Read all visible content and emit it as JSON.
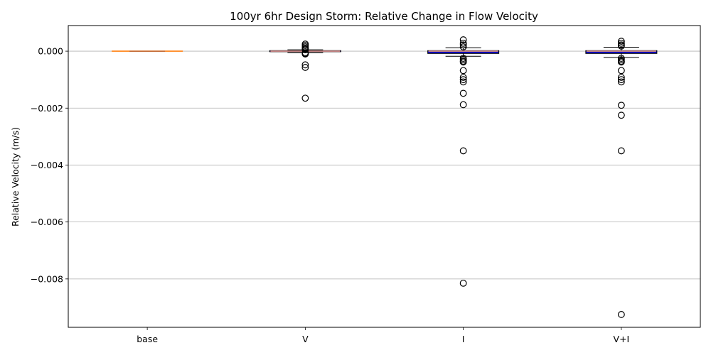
{
  "chart_data": {
    "type": "box",
    "title": "100yr 6hr Design Storm: Relative Change in Flow Velocity",
    "xlabel": "",
    "ylabel": "Relative Velocity (m/s)",
    "ylim": [
      -0.0097,
      0.0009
    ],
    "yticks": [
      0.0,
      -0.002,
      -0.004,
      -0.006,
      -0.008
    ],
    "ytick_labels": [
      "0.000",
      "−0.002",
      "−0.004",
      "−0.006",
      "−0.008"
    ],
    "grid": "y",
    "categories": [
      "base",
      "V",
      "I",
      "V+I"
    ],
    "boxes": [
      {
        "q1": 0.0,
        "median": 0.0,
        "q3": 0.0,
        "whisker_low": 0.0,
        "whisker_high": 0.0,
        "outliers": []
      },
      {
        "q1": -2e-05,
        "median": 0.0,
        "q3": 2e-05,
        "whisker_low": -5e-05,
        "whisker_high": 5e-05,
        "outliers": [
          0.00025,
          0.0002,
          0.00015,
          0.0001,
          8e-05,
          5e-05,
          -5e-05,
          -8e-05,
          -0.0001,
          -0.00048,
          -0.00057,
          -0.00165
        ]
      },
      {
        "q1": -8e-05,
        "median": 0.0,
        "q3": 2e-05,
        "whisker_low": -0.00018,
        "whisker_high": 0.00012,
        "outliers": [
          0.0004,
          0.00028,
          0.00022,
          0.00015,
          -0.00025,
          -0.0003,
          -0.00035,
          -0.00038,
          -0.00068,
          -0.00092,
          -0.001,
          -0.00108,
          -0.00148,
          -0.00188,
          -0.0035,
          -0.00815
        ]
      },
      {
        "q1": -8e-05,
        "median": 0.0,
        "q3": 2e-05,
        "whisker_low": -0.00022,
        "whisker_high": 0.00014,
        "outliers": [
          0.00035,
          0.00028,
          0.00022,
          0.00018,
          -0.00025,
          -0.0003,
          -0.00035,
          -0.00038,
          -0.00068,
          -0.00092,
          -0.001,
          -0.00108,
          -0.0019,
          -0.00225,
          -0.0035,
          -0.00925
        ]
      }
    ],
    "colors": {
      "box_edge": "#000000",
      "box_fill": "#0000cc",
      "median": "#ff7f0e",
      "median_inner": "#c08080",
      "grid": "#b0b0b0",
      "outlier_edge": "#000000"
    }
  }
}
